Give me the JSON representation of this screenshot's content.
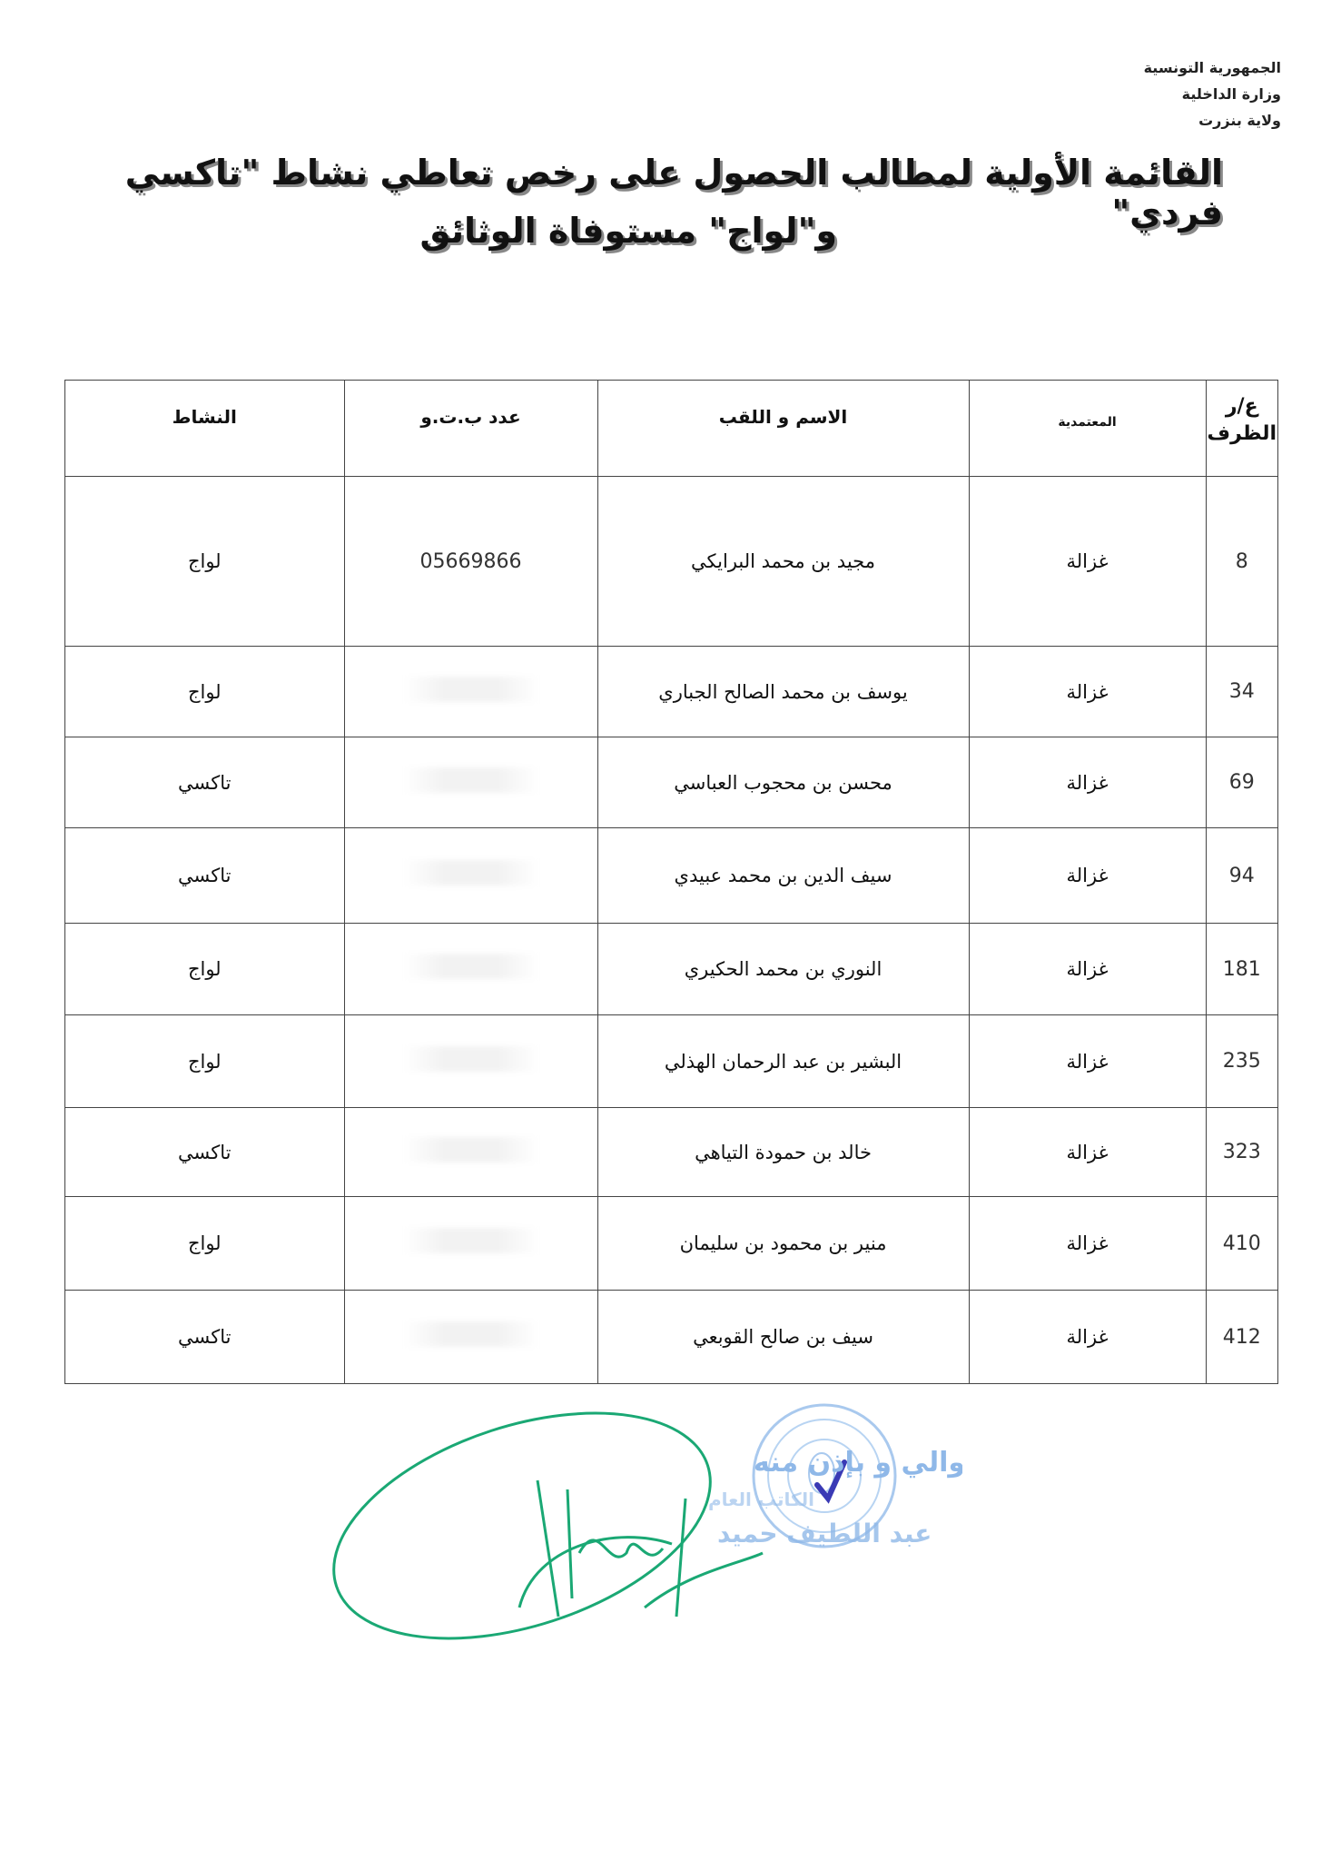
{
  "header": {
    "country": "الجمهورية التونسية",
    "ministry": "وزارة الداخلية",
    "governorate": "ولاية بنزرت"
  },
  "title": {
    "line1": "القائمة الأولية لمطالب الحصول على رخص تعاطي نشاط \"تاكسي فردي\"",
    "line2": "و\"لواج\" مستوفاة الوثائق"
  },
  "table": {
    "columns": [
      "ع/ر الظرف",
      "المعتمدية",
      "الاسم و اللقب",
      "عدد ب.ت.و",
      "النشاط"
    ],
    "rows": [
      {
        "num": "8",
        "delegation": "غزالة",
        "name": "مجيد بن محمد البرايكي",
        "cin": "05669866",
        "activity": "لواج"
      },
      {
        "num": "34",
        "delegation": "غزالة",
        "name": "يوسف بن محمد الصالح الجباري",
        "cin": "",
        "activity": "لواج"
      },
      {
        "num": "69",
        "delegation": "غزالة",
        "name": "محسن بن محجوب العباسي",
        "cin": "",
        "activity": "تاكسي"
      },
      {
        "num": "94",
        "delegation": "غزالة",
        "name": "سيف الدين بن محمد عبيدي",
        "cin": "",
        "activity": "تاكسي"
      },
      {
        "num": "181",
        "delegation": "غزالة",
        "name": "النوري بن محمد الحكيري",
        "cin": "",
        "activity": "لواج"
      },
      {
        "num": "235",
        "delegation": "غزالة",
        "name": "البشير بن عبد الرحمان الهذلي",
        "cin": "",
        "activity": "لواج"
      },
      {
        "num": "323",
        "delegation": "غزالة",
        "name": "خالد بن حمودة التياهي",
        "cin": "",
        "activity": "تاكسي"
      },
      {
        "num": "410",
        "delegation": "غزالة",
        "name": "منير بن محمود بن سليمان",
        "cin": "",
        "activity": "لواج"
      },
      {
        "num": "412",
        "delegation": "غزالة",
        "name": "سيف بن صالح القوبعي",
        "cin": "",
        "activity": "تاكسي"
      }
    ]
  },
  "stamp": {
    "text": "عن الوالي و بإذن منه الكاتب العام عبد اللطيف حميد",
    "seal_text": "ولاية بنزرت",
    "ink_color": "#8fb8e8",
    "signature_color": "#1aa874"
  }
}
